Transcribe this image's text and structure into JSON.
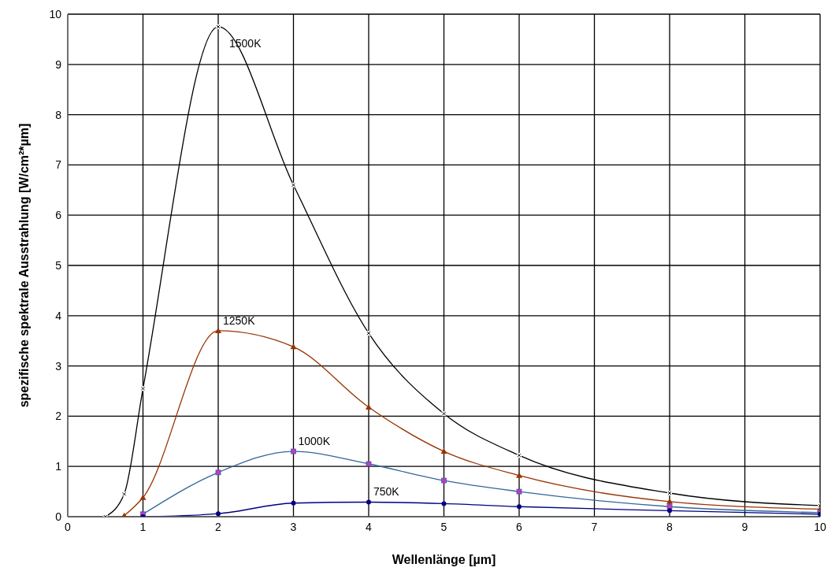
{
  "chart_data": {
    "type": "line",
    "xlabel": "Wellenlänge [µm]",
    "ylabel": "spezifische spektrale Ausstrahlung [W/cm²*µm]",
    "xlim": [
      0,
      10
    ],
    "xticks": [
      0,
      1,
      2,
      3,
      4,
      5,
      6,
      7,
      8,
      9,
      10
    ],
    "ylim": [
      0,
      10
    ],
    "yticks": [
      0,
      1,
      2,
      3,
      4,
      5,
      6,
      7,
      8,
      9,
      10
    ],
    "grid": true,
    "legend": false,
    "line_style": "solid",
    "series": [
      {
        "name": "1500K",
        "color": "#000000",
        "marker": "cross",
        "x": [
          0.5,
          0.75,
          1,
          2,
          3,
          4,
          5,
          6,
          8,
          10
        ],
        "values": [
          0,
          0.45,
          2.55,
          9.75,
          6.6,
          3.65,
          2.05,
          1.22,
          0.47,
          0.22
        ]
      },
      {
        "name": "1250K",
        "color": "#993300",
        "marker": "triangle",
        "x": [
          0.75,
          1,
          2,
          3,
          4,
          5,
          6,
          8,
          10
        ],
        "values": [
          0.02,
          0.38,
          3.7,
          3.38,
          2.18,
          1.3,
          0.82,
          0.3,
          0.15
        ]
      },
      {
        "name": "1000K",
        "color": "#336699",
        "marker": "square",
        "x": [
          1,
          2,
          3,
          4,
          5,
          6,
          8,
          10
        ],
        "values": [
          0.05,
          0.88,
          1.3,
          1.05,
          0.72,
          0.5,
          0.2,
          0.08
        ]
      },
      {
        "name": "750K",
        "color": "#000080",
        "marker": "circle",
        "x": [
          1,
          2,
          3,
          4,
          5,
          6,
          8,
          10
        ],
        "values": [
          0,
          0.06,
          0.27,
          0.29,
          0.26,
          0.2,
          0.12,
          0.05
        ]
      }
    ]
  }
}
